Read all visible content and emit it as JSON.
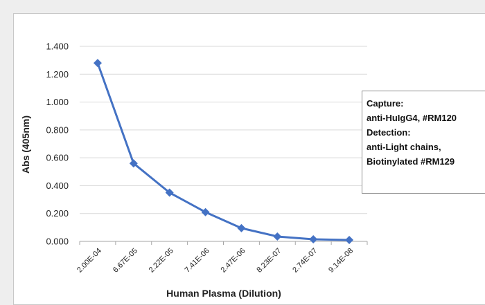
{
  "chart_data": {
    "type": "line",
    "xlabel": "Human Plasma (Dilution)",
    "ylabel": "Abs (405nm)",
    "categories": [
      "2.00E-04",
      "6.67E-05",
      "2.22E-05",
      "7.41E-06",
      "2.47E-06",
      "8.23E-07",
      "2.74E-07",
      "9.14E-08"
    ],
    "series": [
      {
        "values": [
          1.28,
          0.56,
          0.35,
          0.21,
          0.095,
          0.035,
          0.015,
          0.01
        ]
      }
    ],
    "ylim": [
      0,
      1.4
    ],
    "yticks": [
      "0.000",
      "0.200",
      "0.400",
      "0.600",
      "0.800",
      "1.000",
      "1.200",
      "1.400"
    ],
    "grid": true,
    "legend_box": "right",
    "annotation": [
      "Capture:",
      "anti-HuIgG4, #RM120",
      "Detection:",
      "anti-Light chains,",
      "Biotinylated #RM129"
    ],
    "series_color": "#4472c4"
  }
}
